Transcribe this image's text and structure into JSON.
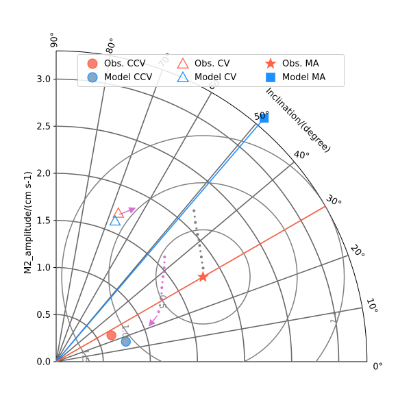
{
  "chart_data": {
    "type": "scatter",
    "subtype": "polar-quarter",
    "title": "",
    "ylabel": "M2_amplitude/(cm s-1)",
    "theta_label": "Inclination/(degree)",
    "rlim": [
      0,
      3.3
    ],
    "r_ticks": [
      "0.0",
      "0.5",
      "1.0",
      "1.5",
      "2.0",
      "2.5",
      "3.0"
    ],
    "r_tick_values": [
      0,
      0.5,
      1.0,
      1.5,
      2.0,
      2.5,
      3.0
    ],
    "r_grid": [
      0.5,
      1.0,
      1.5,
      2.0,
      2.5,
      3.0
    ],
    "theta_grid_deg": [
      0,
      10,
      20,
      30,
      40,
      50,
      60,
      70,
      80,
      90
    ],
    "theta_tick_labels": [
      "0°",
      "10°",
      "20°",
      "30°",
      "40°",
      "50°",
      "60°",
      "70°",
      "80°",
      "90°"
    ],
    "grid": true,
    "legend_position": "top",
    "series": [
      {
        "name": "Obs. CCV",
        "marker": "circle",
        "color": "#fa8072",
        "edge": "#ff6347",
        "points": [
          {
            "theta": 25.5,
            "r": 0.65
          }
        ]
      },
      {
        "name": "Model CCV",
        "marker": "circle",
        "color": "#87a9c9",
        "edge": "#1e90ff",
        "points": [
          {
            "theta": 16.0,
            "r": 0.77
          }
        ]
      },
      {
        "name": "Obs. CV",
        "marker": "triangle-open",
        "color": "#ff6347",
        "points": [
          {
            "theta": 67.3,
            "r": 1.71
          }
        ]
      },
      {
        "name": "Model CV",
        "marker": "triangle-open",
        "color": "#1e90ff",
        "points": [
          {
            "theta": 67.3,
            "r": 1.62
          }
        ]
      },
      {
        "name": "Obs. MA",
        "marker": "star",
        "color": "#ff6347",
        "points": [
          {
            "theta": 30.0,
            "r": 1.8
          }
        ]
      },
      {
        "name": "Model MA",
        "marker": "square",
        "color": "#1e90ff",
        "points": [
          {
            "theta": 49.5,
            "r": 3.4
          }
        ]
      }
    ],
    "ma_lines": [
      {
        "color": "#ff6347",
        "theta": 30.0,
        "r_end": 3.3
      },
      {
        "color": "#1e90ff",
        "theta": 49.5,
        "r_end": 3.4
      }
    ],
    "model_obs_circles": {
      "color": "#808080",
      "center": {
        "theta": 30.0,
        "r": 1.8
      },
      "radii": [
        0.5,
        1.0,
        1.5
      ],
      "labels": [
        "0.5",
        "1.0",
        "1.5"
      ]
    },
    "trajectories": [
      {
        "color": "#808080",
        "style": "dotted",
        "points": [
          {
            "theta": 32.5,
            "r": 1.85
          },
          {
            "theta": 35.8,
            "r": 1.9
          },
          {
            "theta": 39.0,
            "r": 1.96
          },
          {
            "theta": 42.0,
            "r": 2.02
          },
          {
            "theta": 45.0,
            "r": 2.09
          },
          {
            "theta": 47.6,
            "r": 2.17
          }
        ]
      },
      {
        "color": "#da70d6",
        "style": "dotted",
        "points": [
          {
            "theta": 44.0,
            "r": 1.6
          },
          {
            "theta": 41.0,
            "r": 1.52
          },
          {
            "theta": 38.5,
            "r": 1.45
          },
          {
            "theta": 35.0,
            "r": 1.37
          },
          {
            "theta": 30.8,
            "r": 1.3
          },
          {
            "theta": 26.0,
            "r": 1.21
          }
        ]
      },
      {
        "color": "#da70d6",
        "style": "arrow",
        "from": {
          "theta": 24.5,
          "r": 1.18
        },
        "to": {
          "theta": 20.8,
          "r": 1.05
        }
      },
      {
        "color": "#da70d6",
        "style": "arrow",
        "from": {
          "theta": 66.8,
          "r": 1.7
        },
        "to": {
          "theta": 62.6,
          "r": 1.84
        }
      }
    ]
  }
}
